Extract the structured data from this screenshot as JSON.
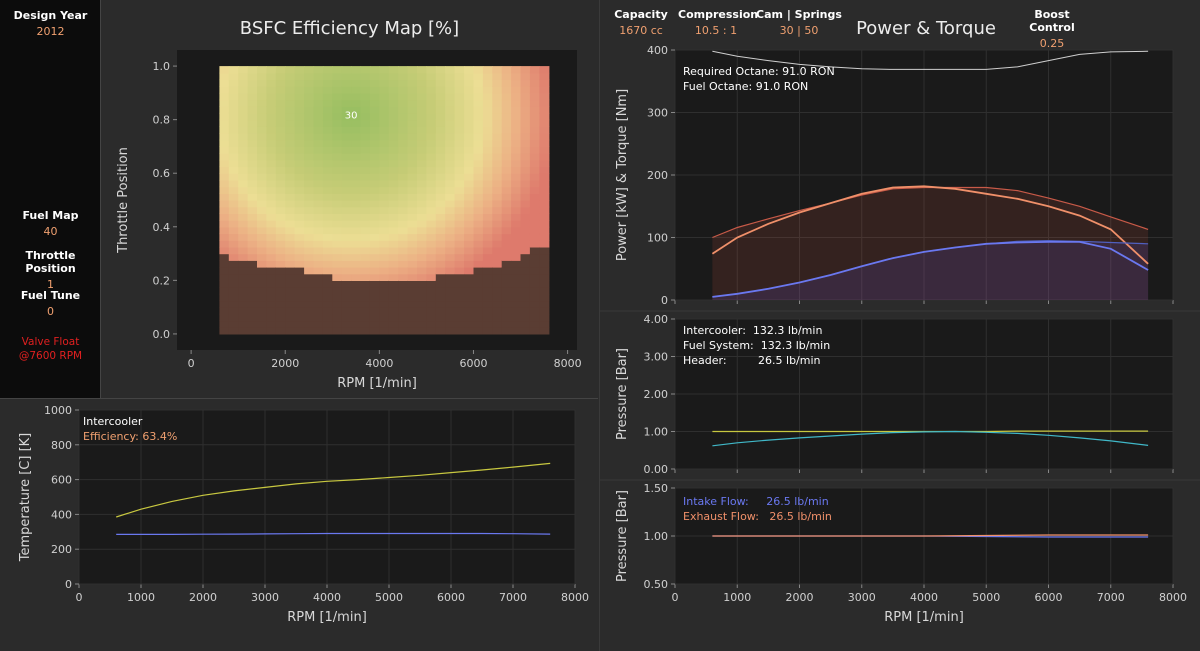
{
  "sidebar": {
    "design_year_label": "Design Year",
    "design_year_value": "2012",
    "fuel_map_label": "Fuel Map",
    "fuel_map_value": "40",
    "throttle_label": "Throttle Position",
    "throttle_value": "1",
    "fuel_tune_label": "Fuel Tune",
    "fuel_tune_value": "0",
    "valve_float_line1": "Valve Float",
    "valve_float_line2": "@7600 RPM"
  },
  "header": {
    "capacity_label": "Capacity",
    "capacity_value": "1670 cc",
    "compression_label": "Compression",
    "compression_value": "10.5 : 1",
    "cam_label": "Cam | Springs",
    "cam_value": "30 | 50",
    "boost_label": "Boost Control",
    "boost_value": "0.25"
  },
  "colors": {
    "power": "#6a78f0",
    "torque": "#f0906a",
    "octane_line": "#cfcfcf",
    "yellow": "#c8c840",
    "cyan": "#40b8c8",
    "bsfc_green": "#9cc060",
    "bsfc_red": "#e07c6c",
    "mask": "#5a3d33",
    "warning": "#e02020",
    "value_orange": "#f0a070"
  },
  "chart_data": [
    {
      "type": "heatmap",
      "title": "BSFC Efficiency Map [%]",
      "xlabel": "RPM [1/min]",
      "ylabel": "Throttle Position",
      "xlim": [
        -300,
        8200
      ],
      "ylim": [
        -0.06,
        1.06
      ],
      "xticks": [
        "0",
        "2000",
        "4000",
        "6000",
        "8000"
      ],
      "yticks": [
        "0.0",
        "0.2",
        "0.4",
        "0.6",
        "0.8",
        "1.0"
      ],
      "x_range": [
        600,
        7600
      ],
      "y_range": [
        0,
        1
      ],
      "peak": {
        "rpm": 3400,
        "throttle": 0.82
      },
      "annotation": "30",
      "annotation_at": {
        "rpm": 3400,
        "throttle": 0.82
      },
      "lower_limit": {
        "rpm": [
          600,
          1000,
          1500,
          2000,
          2500,
          3000,
          3500,
          4000,
          4500,
          5000,
          5500,
          6000,
          6500,
          7000,
          7600
        ],
        "throttle": [
          0.31,
          0.27,
          0.26,
          0.25,
          0.23,
          0.21,
          0.19,
          0.19,
          0.2,
          0.21,
          0.22,
          0.24,
          0.26,
          0.29,
          0.34
        ]
      }
    },
    {
      "type": "line",
      "xlabel": "RPM [1/min]",
      "ylabel": "Temperature [C] [K]",
      "xlim": [
        0,
        8000
      ],
      "ylim": [
        0,
        1000
      ],
      "xticks": [
        "0",
        "1000",
        "2000",
        "3000",
        "4000",
        "5000",
        "6000",
        "7000",
        "8000"
      ],
      "yticks": [
        "0",
        "200",
        "400",
        "600",
        "800",
        "1000"
      ],
      "legend": [
        "Intercooler",
        "Efficiency: 63.4%"
      ],
      "x": [
        600,
        1000,
        1500,
        2000,
        2500,
        3000,
        3500,
        4000,
        4500,
        5000,
        5500,
        6000,
        6500,
        7000,
        7600
      ],
      "series": [
        {
          "values": [
            385,
            430,
            475,
            510,
            535,
            555,
            575,
            590,
            600,
            612,
            625,
            640,
            655,
            672,
            693
          ]
        },
        {
          "values": [
            285,
            285,
            285,
            286,
            287,
            288,
            289,
            290,
            290,
            290,
            290,
            290,
            290,
            289,
            287
          ]
        }
      ]
    },
    {
      "type": "line",
      "title": "Power & Torque",
      "xlabel": "",
      "ylabel": "Power [kW]  &  Torque [Nm]",
      "xlim": [
        0,
        8000
      ],
      "ylim": [
        0,
        400
      ],
      "yticks": [
        "0",
        "100",
        "200",
        "300",
        "400"
      ],
      "annotations": [
        "Required Octane:   91.0 RON",
        "Fuel Octane:   91.0 RON"
      ],
      "x": [
        600,
        1000,
        1500,
        2000,
        2500,
        3000,
        3500,
        4000,
        4500,
        5000,
        5500,
        6000,
        6500,
        7000,
        7600
      ],
      "series": [
        {
          "values": [
            100,
            116,
            130,
            143,
            155,
            168,
            178,
            180,
            180,
            180,
            175,
            163,
            150,
            133,
            113
          ]
        },
        {
          "values": [
            74,
            100,
            122,
            140,
            155,
            170,
            180,
            182,
            178,
            170,
            162,
            150,
            135,
            113,
            58
          ]
        },
        {
          "values": [
            5,
            10,
            18,
            28,
            40,
            54,
            67,
            77,
            84,
            90,
            94,
            95,
            94,
            92,
            90
          ]
        },
        {
          "values": [
            5,
            10,
            18,
            28,
            40,
            54,
            67,
            77,
            84,
            90,
            92,
            93,
            93,
            82,
            48
          ]
        },
        {
          "values": [
            398,
            390,
            383,
            377,
            373,
            370,
            369,
            369,
            369,
            369,
            373,
            383,
            393,
            397,
            398
          ]
        }
      ]
    },
    {
      "type": "line",
      "xlabel": "",
      "ylabel": "Pressure [Bar]",
      "xlim": [
        0,
        8000
      ],
      "ylim": [
        0,
        4
      ],
      "yticks": [
        "0.00",
        "1.00",
        "2.00",
        "3.00",
        "4.00"
      ],
      "annotations": [
        "Intercooler:  132.3 lb/min",
        "Fuel System:  132.3 lb/min",
        "Header:         26.5 lb/min"
      ],
      "x": [
        600,
        1000,
        1500,
        2000,
        2500,
        3000,
        3500,
        4000,
        4500,
        5000,
        5500,
        6000,
        6500,
        7000,
        7600
      ],
      "series": [
        {
          "values": [
            1.0,
            1.0,
            1.0,
            1.0,
            1.0,
            1.0,
            1.0,
            1.0,
            1.0,
            1.0,
            1.01,
            1.01,
            1.01,
            1.01,
            1.01
          ]
        },
        {
          "values": [
            0.62,
            0.7,
            0.77,
            0.83,
            0.88,
            0.93,
            0.97,
            0.99,
            1.0,
            0.98,
            0.95,
            0.9,
            0.83,
            0.75,
            0.63
          ]
        }
      ]
    },
    {
      "type": "line",
      "xlabel": "RPM [1/min]",
      "ylabel": "Pressure [Bar]",
      "xlim": [
        0,
        8000
      ],
      "ylim": [
        0.5,
        1.5
      ],
      "xticks": [
        "0",
        "1000",
        "2000",
        "3000",
        "4000",
        "5000",
        "6000",
        "7000",
        "8000"
      ],
      "yticks": [
        "0.50",
        "1.00",
        "1.50"
      ],
      "legend": [
        "Intake Flow:     26.5 lb/min",
        "Exhaust Flow:   26.5 lb/min"
      ],
      "x": [
        600,
        1000,
        2000,
        3000,
        4000,
        5000,
        6000,
        7000,
        7600
      ],
      "series": [
        {
          "values": [
            1.0,
            1.0,
            1.0,
            1.0,
            1.0,
            0.995,
            0.99,
            0.99,
            0.99
          ]
        },
        {
          "values": [
            1.0,
            1.0,
            1.0,
            1.0,
            1.0,
            1.005,
            1.01,
            1.01,
            1.01
          ]
        }
      ]
    }
  ]
}
